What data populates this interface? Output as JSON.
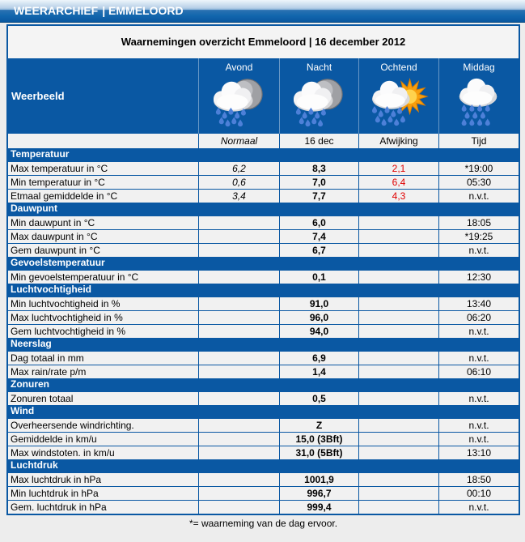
{
  "header": {
    "title": "WEERARCHIEF",
    "subtitle": "| EMMELOORD"
  },
  "table": {
    "title": "Waarnemingen overzicht Emmeloord | 16 december 2012",
    "weerbeeld_label": "Weerbeeld",
    "day_parts": [
      {
        "label": "Avond",
        "icon": "rain-moon-icon"
      },
      {
        "label": "Nacht",
        "icon": "rain-moon-icon"
      },
      {
        "label": "Ochtend",
        "icon": "rain-sun-icon"
      },
      {
        "label": "Middag",
        "icon": "rain-icon"
      }
    ],
    "columns": [
      "",
      "Normaal",
      "16 dec",
      "Afwijking",
      "Tijd"
    ],
    "sections": [
      {
        "name": "Temperatuur",
        "rows": [
          {
            "label": "Max temperatuur in °C",
            "normaal": "6,2",
            "dag": "8,3",
            "afwijking": "2,1",
            "tijd": "*19:00"
          },
          {
            "label": "Min temperatuur in °C",
            "normaal": "0,6",
            "dag": "7,0",
            "afwijking": "6,4",
            "tijd": "05:30"
          },
          {
            "label": "Etmaal gemiddelde in °C",
            "normaal": "3,4",
            "dag": "7,7",
            "afwijking": "4,3",
            "tijd": "n.v.t."
          }
        ]
      },
      {
        "name": "Dauwpunt",
        "rows": [
          {
            "label": "Min dauwpunt in °C",
            "normaal": "",
            "dag": "6,0",
            "afwijking": "",
            "tijd": "18:05"
          },
          {
            "label": "Max dauwpunt in °C",
            "normaal": "",
            "dag": "7,4",
            "afwijking": "",
            "tijd": "*19:25"
          },
          {
            "label": "Gem dauwpunt in °C",
            "normaal": "",
            "dag": "6,7",
            "afwijking": "",
            "tijd": "n.v.t."
          }
        ]
      },
      {
        "name": "Gevoelstemperatuur",
        "rows": [
          {
            "label": "Min gevoelstemperatuur in °C",
            "normaal": "",
            "dag": "0,1",
            "afwijking": "",
            "tijd": "12:30"
          }
        ]
      },
      {
        "name": "Luchtvochtigheid",
        "rows": [
          {
            "label": "Min luchtvochtigheid in %",
            "normaal": "",
            "dag": "91,0",
            "afwijking": "",
            "tijd": "13:40"
          },
          {
            "label": "Max luchtvochtigheid in %",
            "normaal": "",
            "dag": "96,0",
            "afwijking": "",
            "tijd": "06:20"
          },
          {
            "label": "Gem luchtvochtigheid in %",
            "normaal": "",
            "dag": "94,0",
            "afwijking": "",
            "tijd": "n.v.t."
          }
        ]
      },
      {
        "name": "Neerslag",
        "rows": [
          {
            "label": "Dag totaal in mm",
            "normaal": "",
            "dag": "6,9",
            "afwijking": "",
            "tijd": "n.v.t."
          },
          {
            "label": "Max rain/rate p/m",
            "normaal": "",
            "dag": "1,4",
            "afwijking": "",
            "tijd": "06:10"
          }
        ]
      },
      {
        "name": "Zonuren",
        "rows": [
          {
            "label": "Zonuren totaal",
            "normaal": "",
            "dag": "0,5",
            "afwijking": "",
            "tijd": "n.v.t."
          }
        ]
      },
      {
        "name": "Wind",
        "rows": [
          {
            "label": "Overheersende windrichting.",
            "normaal": "",
            "dag": "Z",
            "afwijking": "",
            "tijd": "n.v.t."
          },
          {
            "label": "Gemiddelde in km/u",
            "normaal": "",
            "dag": "15,0 (3Bft)",
            "afwijking": "",
            "tijd": "n.v.t."
          },
          {
            "label": "Max windstoten. in km/u",
            "normaal": "",
            "dag": "31,0 (5Bft)",
            "afwijking": "",
            "tijd": "13:10"
          }
        ]
      },
      {
        "name": "Luchtdruk",
        "rows": [
          {
            "label": "Max luchtdruk in hPa",
            "normaal": "",
            "dag": "1001,9",
            "afwijking": "",
            "tijd": "18:50"
          },
          {
            "label": "Min luchtdruk in hPa",
            "normaal": "",
            "dag": "996,7",
            "afwijking": "",
            "tijd": "00:10"
          },
          {
            "label": "Gem. luchtdruk in hPa",
            "normaal": "",
            "dag": "999,4",
            "afwijking": "",
            "tijd": "n.v.t."
          }
        ]
      }
    ],
    "footnote": "*= waarneming van de dag ervoor."
  },
  "colors": {
    "table_blue": "#0a58a3",
    "afwijking_red": "#e00000",
    "cell_background": "#f1f1f1",
    "page_background": "#ededed"
  }
}
